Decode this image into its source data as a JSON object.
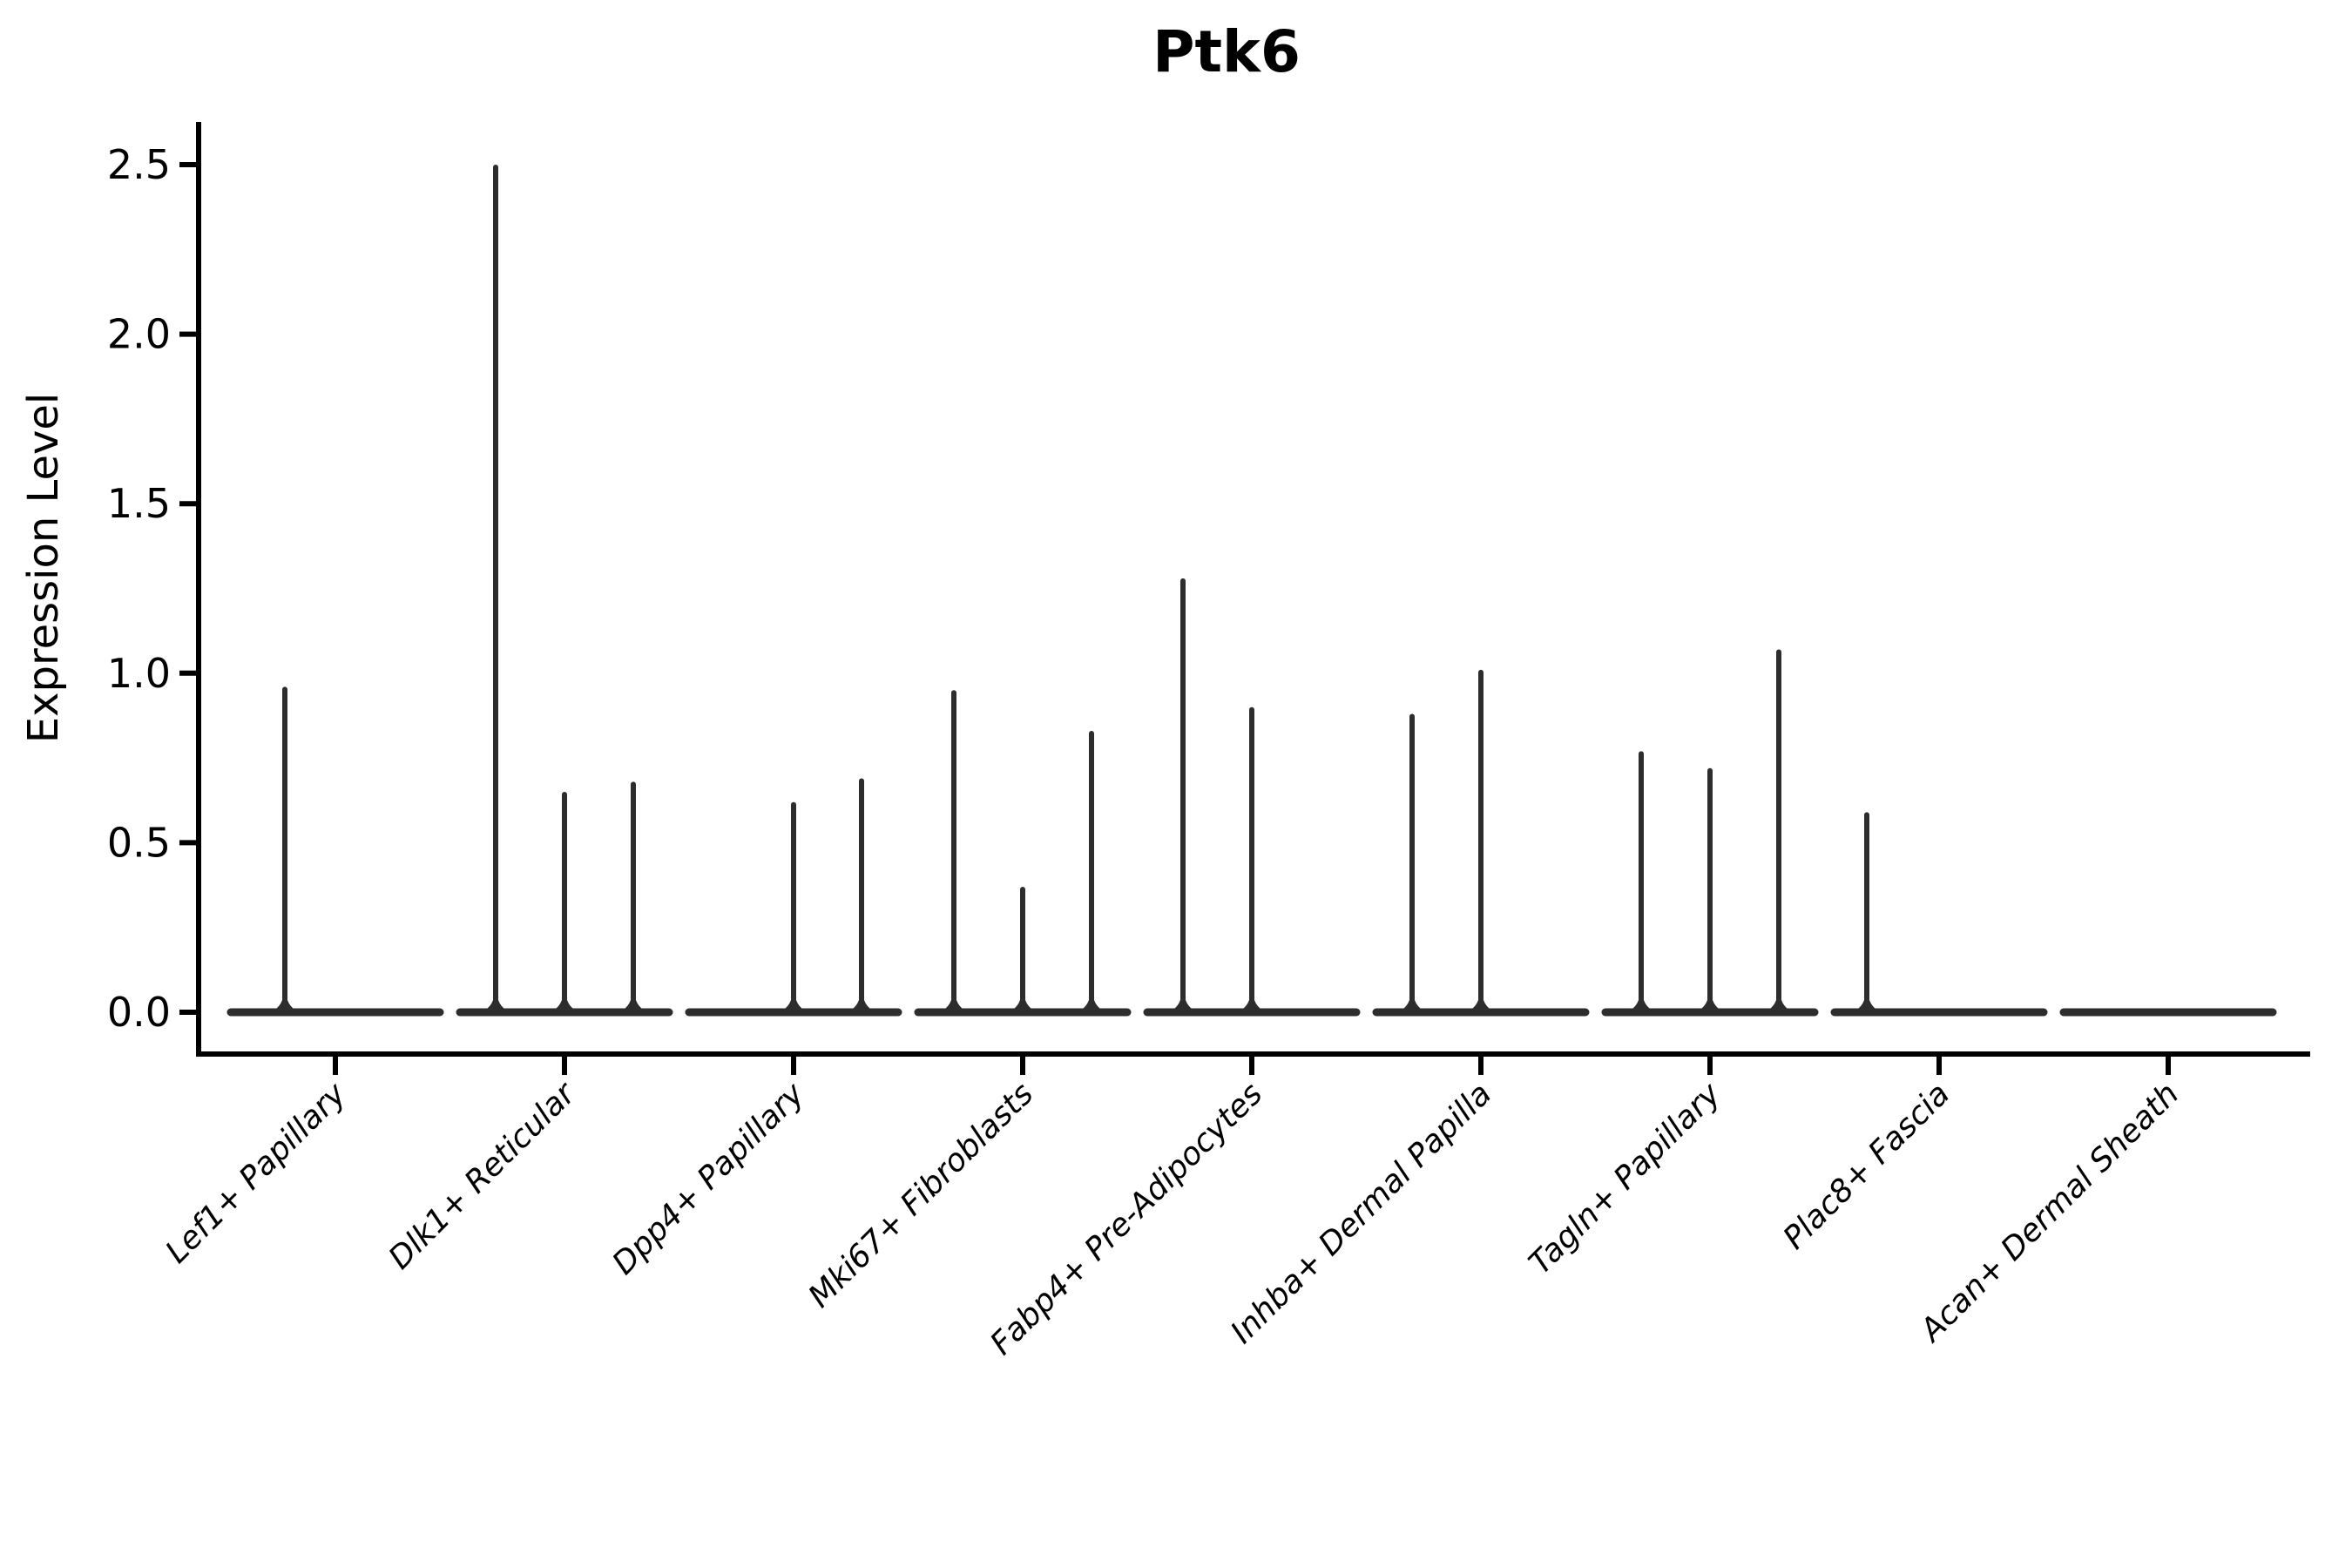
{
  "chart_data": {
    "type": "violin",
    "title": "Ptk6",
    "ylabel": "Expression Level",
    "xlabel": "",
    "ylim": [
      -0.13,
      2.63
    ],
    "yticks": [
      0.0,
      0.5,
      1.0,
      1.5,
      2.0,
      2.5
    ],
    "ytick_labels": [
      "0.0",
      "0.5",
      "1.0",
      "1.5",
      "2.0",
      "2.5"
    ],
    "grid": false,
    "legend": "none",
    "categories": [
      "Lef1+ Papillary",
      "Dlk1+ Reticular",
      "Dpp4+ Papillary",
      "Mki67+ Fibroblasts",
      "Fabp4+ Pre-Adipocytes",
      "Inhba+ Dermal Papilla",
      "Tagln+ Papillary",
      "Plac8+ Fascia",
      "Acan+ Dermal Sheath"
    ],
    "violins": [
      {
        "category": "Lef1+ Papillary",
        "spikes": [
          {
            "dx": -58,
            "value": 0.96
          }
        ]
      },
      {
        "category": "Dlk1+ Reticular",
        "spikes": [
          {
            "dx": -79,
            "value": 2.5
          },
          {
            "dx": 0,
            "value": 0.65
          },
          {
            "dx": 79,
            "value": 0.68
          }
        ]
      },
      {
        "category": "Dpp4+ Papillary",
        "spikes": [
          {
            "dx": 0,
            "value": 0.62
          },
          {
            "dx": 78,
            "value": 0.69
          }
        ]
      },
      {
        "category": "Mki67+ Fibroblasts",
        "spikes": [
          {
            "dx": -79,
            "value": 0.95
          },
          {
            "dx": 0,
            "value": 0.37
          },
          {
            "dx": 79,
            "value": 0.83
          }
        ]
      },
      {
        "category": "Fabp4+ Pre-Adipocytes",
        "spikes": [
          {
            "dx": -79,
            "value": 1.28
          },
          {
            "dx": 0,
            "value": 0.9
          }
        ]
      },
      {
        "category": "Inhba+ Dermal Papilla",
        "spikes": [
          {
            "dx": -79,
            "value": 0.88
          },
          {
            "dx": 0,
            "value": 1.01
          }
        ]
      },
      {
        "category": "Tagln+ Papillary",
        "spikes": [
          {
            "dx": -79,
            "value": 0.77
          },
          {
            "dx": 0,
            "value": 0.72
          },
          {
            "dx": 79,
            "value": 1.07
          }
        ]
      },
      {
        "category": "Plac8+ Fascia",
        "spikes": [
          {
            "dx": -83,
            "value": 0.59
          }
        ]
      },
      {
        "category": "Acan+ Dermal Sheath",
        "spikes": []
      }
    ],
    "colors": {
      "violin": "#2d2d2d",
      "axis": "#000000",
      "text": "#000000",
      "background": "#ffffff"
    }
  }
}
